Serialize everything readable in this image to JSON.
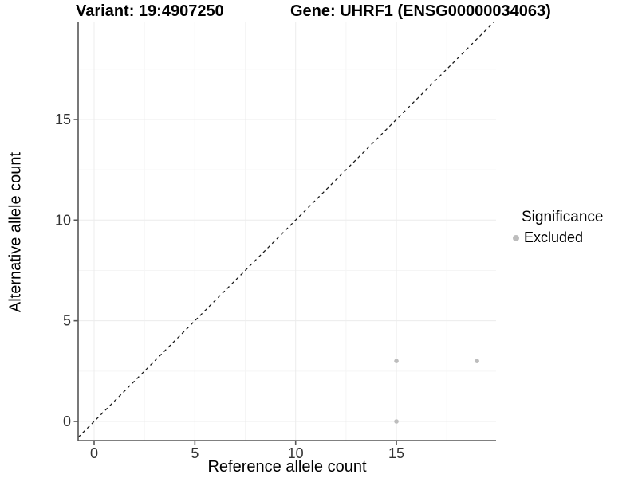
{
  "chart_data": {
    "type": "scatter",
    "title_left": "Variant: 19:4907250",
    "title_right": "Gene: UHRF1 (ENSG00000034063)",
    "xlabel": "Reference allele count",
    "ylabel": "Alternative allele count",
    "xlim": [
      -0.95,
      19.95
    ],
    "ylim": [
      -0.95,
      19.95
    ],
    "x_ticks": [
      0,
      5,
      10,
      15
    ],
    "y_ticks": [
      0,
      5,
      10,
      15
    ],
    "minor_ticks": [
      2.5,
      7.5,
      12.5,
      17.5
    ],
    "grid": "faint major and minor gridlines on white background",
    "series": [
      {
        "name": "Excluded",
        "color": "#bdbdbd",
        "points": [
          {
            "x": 15,
            "y": 0
          },
          {
            "x": 15,
            "y": 3
          },
          {
            "x": 19,
            "y": 3
          }
        ]
      }
    ],
    "reference_line": {
      "equation": "y = x",
      "style": "dashed",
      "color": "#1a1a1a"
    },
    "legend": {
      "title": "Significance",
      "position": "right",
      "items": [
        {
          "label": "Excluded",
          "color": "#bdbdbd"
        }
      ]
    }
  },
  "colors": {
    "background": "#ffffff",
    "point": "#bdbdbd",
    "axis_line": "#565656",
    "tick_label": "#333333",
    "grid_major": "#ececec",
    "grid_minor": "#f5f5f5",
    "identity_line": "#1a1a1a",
    "title_text": "#000000"
  }
}
